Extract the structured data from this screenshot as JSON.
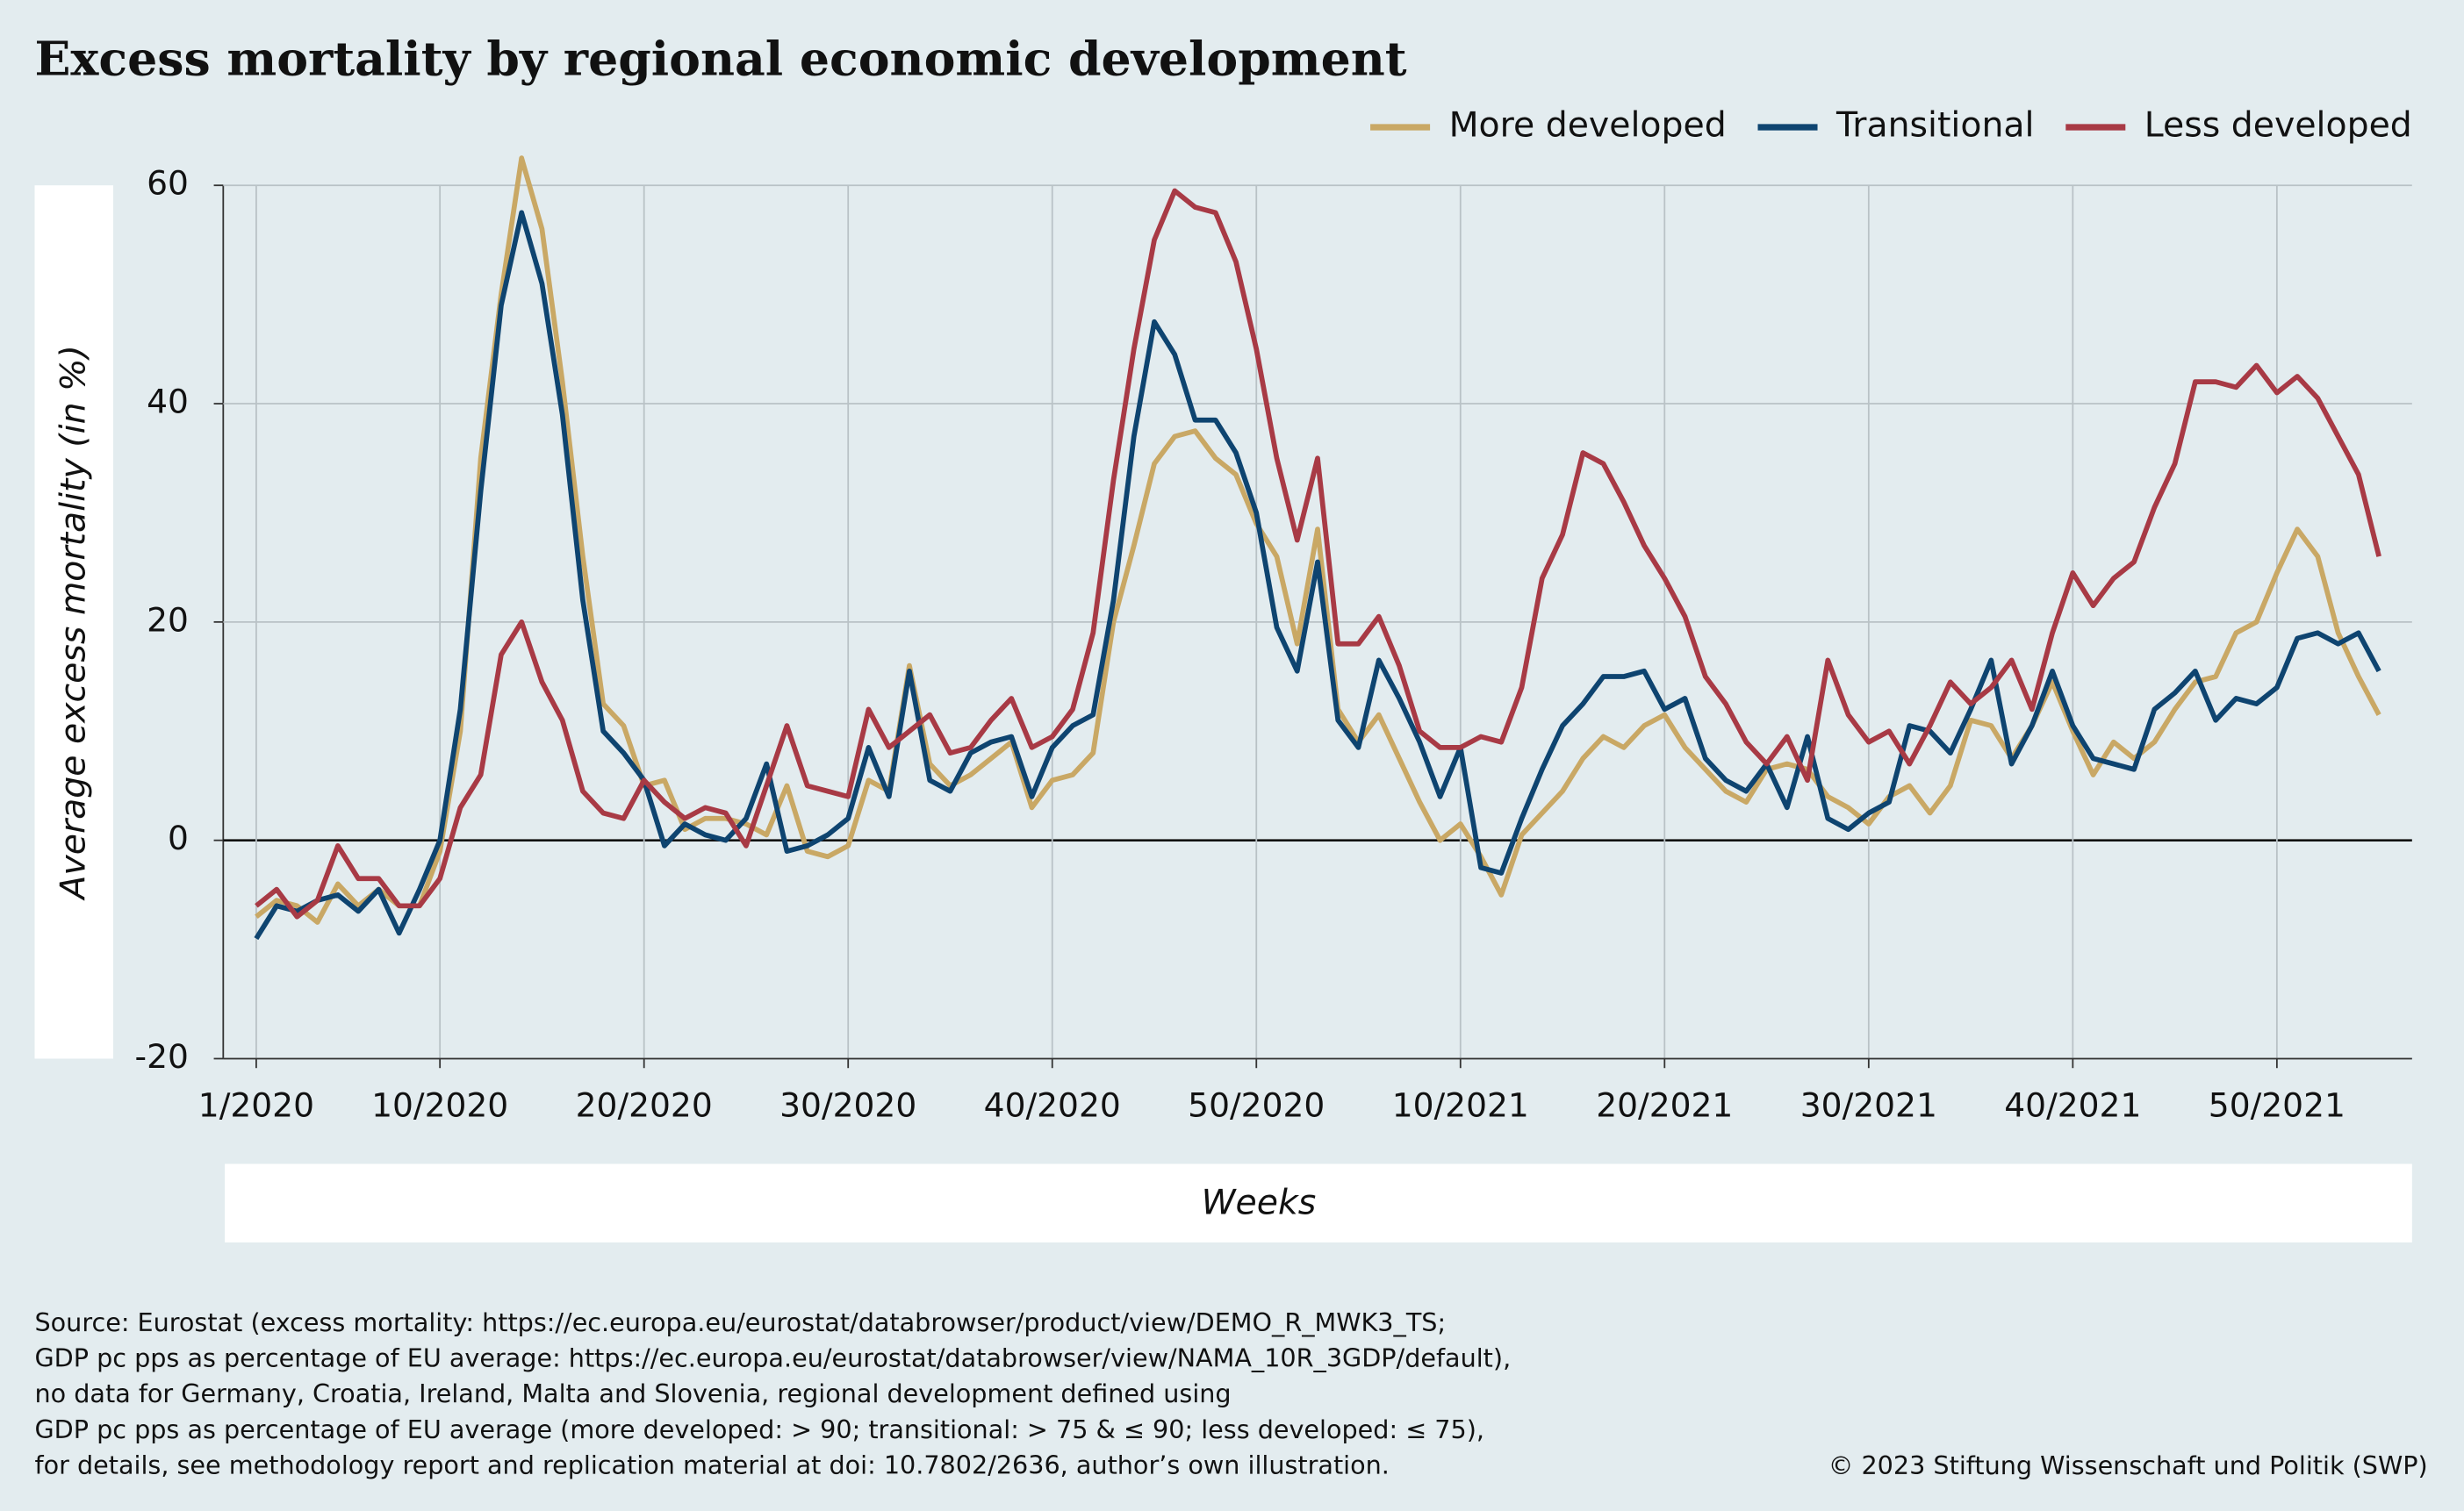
{
  "chart_data": {
    "type": "line",
    "title": "Excess mortality by regional economic development",
    "xlabel": "Weeks",
    "ylabel": "Average excess mortality (in %)",
    "categories": [
      "1/2020",
      null,
      null,
      null,
      null,
      null,
      null,
      null,
      null,
      "10/2020",
      null,
      null,
      null,
      null,
      null,
      null,
      null,
      null,
      null,
      "20/2020",
      null,
      null,
      null,
      null,
      null,
      null,
      null,
      null,
      null,
      "30/2020",
      null,
      null,
      null,
      null,
      null,
      null,
      null,
      null,
      null,
      "40/2020",
      null,
      null,
      null,
      null,
      null,
      null,
      null,
      null,
      null,
      "50/2020",
      null,
      null,
      null,
      null,
      null,
      null,
      null,
      null,
      null,
      "10/2021",
      null,
      null,
      null,
      null,
      null,
      null,
      null,
      null,
      null,
      "20/2021",
      null,
      null,
      null,
      null,
      null,
      null,
      null,
      null,
      null,
      "30/2021",
      null,
      null,
      null,
      null,
      null,
      null,
      null,
      null,
      null,
      "40/2021",
      null,
      null,
      null,
      null,
      null,
      null,
      null,
      null,
      null,
      "50/2021",
      null,
      null,
      null,
      null,
      null
    ],
    "series": [
      {
        "name": "More developed",
        "color": "#c9a865",
        "values": [
          -7,
          -5.5,
          -6,
          -7.5,
          -4,
          -6,
          -4.5,
          -6,
          -6,
          -1,
          10,
          35,
          50,
          62.5,
          56,
          42,
          26,
          12.5,
          10.5,
          5,
          5.5,
          1,
          2,
          2,
          1.5,
          0.5,
          5,
          -1,
          -1.5,
          -0.5,
          5.5,
          4.5,
          16,
          7,
          5,
          6,
          7.5,
          9,
          3,
          5.5,
          6,
          8,
          20,
          27,
          34.5,
          37,
          37.5,
          35,
          33.5,
          29,
          26,
          18,
          28.5,
          12,
          9,
          11.5,
          7.5,
          3.5,
          0,
          1.5,
          -1.5,
          -5,
          0.5,
          2.5,
          4.5,
          7.5,
          9.5,
          8.5,
          10.5,
          11.5,
          8.5,
          6.5,
          4.5,
          3.5,
          6.5,
          7,
          6.5,
          4,
          3,
          1.5,
          4,
          5,
          2.5,
          5,
          11,
          10.5,
          7.5,
          10.5,
          14.5,
          10,
          6,
          9,
          7.5,
          9,
          12,
          14.5,
          15,
          19,
          20,
          24.5,
          28.5,
          26,
          19,
          15,
          11.5
        ]
      },
      {
        "name": "Transitional",
        "color": "#0e4470",
        "values": [
          -9,
          -6,
          -6.5,
          -5.5,
          -5,
          -6.5,
          -4.5,
          -8.5,
          -4.5,
          0,
          12,
          32,
          49,
          57.5,
          51,
          39,
          22,
          10,
          8,
          5.5,
          -0.5,
          1.5,
          0.5,
          0,
          2,
          7,
          -1,
          -0.5,
          0.5,
          2,
          8.5,
          4,
          15.5,
          5.5,
          4.5,
          8,
          9,
          9.5,
          4,
          8.5,
          10.5,
          11.5,
          22,
          37,
          47.5,
          44.5,
          38.5,
          38.5,
          35.5,
          30,
          19.5,
          15.5,
          25.5,
          11,
          8.5,
          16.5,
          13,
          9,
          4,
          8.5,
          -2.5,
          -3,
          2,
          6.5,
          10.5,
          12.5,
          15,
          15,
          15.5,
          12,
          13,
          7.5,
          5.5,
          4.5,
          7,
          3,
          9.5,
          2,
          1,
          2.5,
          3.5,
          10.5,
          10,
          8,
          12,
          16.5,
          7,
          10.5,
          15.5,
          10.5,
          7.5,
          7,
          6.5,
          12,
          13.5,
          15.5,
          11,
          13,
          12.5,
          14,
          18.5,
          19,
          18,
          19,
          15.5
        ]
      },
      {
        "name": "Less developed",
        "color": "#a83a45",
        "values": [
          -6,
          -4.5,
          -7,
          -5.5,
          -0.5,
          -3.5,
          -3.5,
          -6,
          -6,
          -3.5,
          3,
          6,
          17,
          20,
          14.5,
          11,
          4.5,
          2.5,
          2,
          5.5,
          3.5,
          2,
          3,
          2.5,
          -0.5,
          5,
          10.5,
          5,
          4.5,
          4,
          12,
          8.5,
          10,
          11.5,
          8,
          8.5,
          11,
          13,
          8.5,
          9.5,
          12,
          19,
          33,
          45,
          55,
          59.5,
          58,
          57.5,
          53,
          45,
          35,
          27.5,
          35,
          18,
          18,
          20.5,
          16,
          10,
          8.5,
          8.5,
          9.5,
          9,
          14,
          24,
          28,
          35.5,
          34.5,
          31,
          27,
          24,
          20.5,
          15,
          12.5,
          9,
          7,
          9.5,
          5.5,
          16.5,
          11.5,
          9,
          10,
          7,
          10.5,
          14.5,
          12.5,
          14,
          16.5,
          12,
          19,
          24.5,
          21.5,
          24,
          25.5,
          30.5,
          34.5,
          42,
          42,
          41.5,
          43.5,
          41,
          42.5,
          40.5,
          37,
          33.5,
          26
        ]
      }
    ],
    "ylim": [
      -20,
      60
    ],
    "yticks": [
      -20,
      0,
      20,
      40,
      60
    ],
    "grid": true,
    "legend": "top-right",
    "source": [
      "Source: Eurostat (excess mortality: https://ec.europa.eu/eurostat/databrowser/product/view/DEMO_R_MWK3_TS;",
      "GDP pc pps as percentage of EU average: https://ec.europa.eu/eurostat/databrowser/view/NAMA_10R_3GDP/default),",
      "no data for Germany, Croatia, Ireland, Malta and Slovenia, regional development defined using",
      "GDP pc pps as percentage of EU average (more developed: > 90; transitional: > 75 & ≤ 90; less developed: ≤ 75),",
      "for details, see methodology report and replication material at doi: 10.7802/2636, author’s own illustration."
    ],
    "copyright": "© 2023 Stiftung Wissenschaft und Politik (SWP)"
  }
}
